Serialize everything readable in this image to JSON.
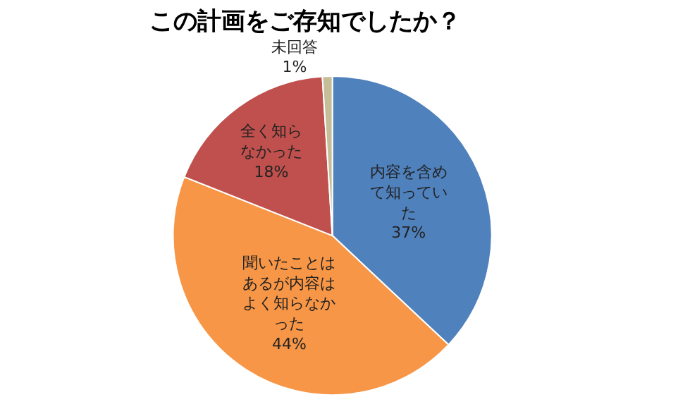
{
  "chart_data": {
    "type": "pie",
    "title": "この計画をご存知でしたか？",
    "categories": [
      "内容を含めて知っていた",
      "聞いたことはあるが内容はよく知らなかった",
      "全く知らなかった",
      "未回答"
    ],
    "values": [
      37,
      44,
      18,
      1
    ],
    "value_labels": [
      "37%",
      "44%",
      "18%",
      "1%"
    ],
    "colors": [
      "#4f81bd",
      "#f79646",
      "#c0504d",
      "#c4bd97"
    ],
    "legend": false
  }
}
